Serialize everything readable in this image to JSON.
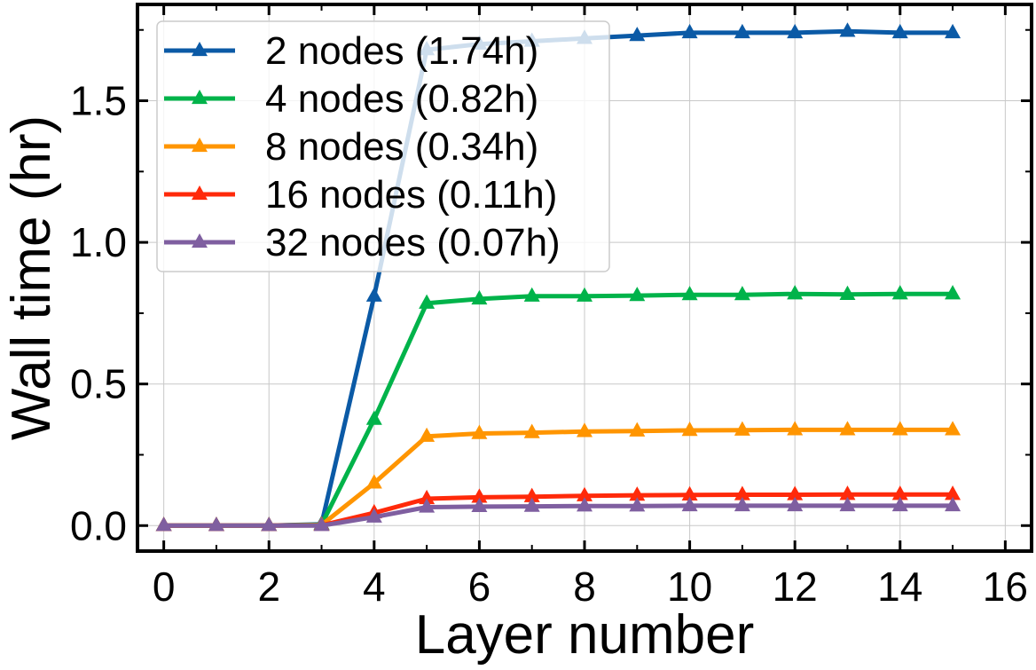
{
  "chart_data": {
    "type": "line",
    "xlabel": "Layer number",
    "ylabel": "Wall time (hr)",
    "xlim": [
      -0.5,
      16.5
    ],
    "ylim": [
      -0.09,
      1.84
    ],
    "xticks": [
      0,
      2,
      4,
      6,
      8,
      10,
      12,
      14,
      16
    ],
    "yticks": [
      0.0,
      0.5,
      1.0,
      1.5
    ],
    "ytick_labels": [
      "0.0",
      "0.5",
      "1.0",
      "1.5"
    ],
    "minor_x_step": 1,
    "minor_y_step": 0.25,
    "grid": true,
    "legend_position": "top-left",
    "marker": "triangle",
    "x": [
      0,
      1,
      2,
      3,
      4,
      5,
      6,
      7,
      8,
      9,
      10,
      11,
      12,
      13,
      14,
      15
    ],
    "series": [
      {
        "name": "2 nodes (1.74h)",
        "color": "#0b5aa6",
        "values": [
          0.0,
          0.0,
          0.0,
          0.005,
          0.81,
          1.68,
          1.7,
          1.71,
          1.72,
          1.73,
          1.74,
          1.74,
          1.74,
          1.745,
          1.74,
          1.74
        ]
      },
      {
        "name": "4 nodes (0.82h)",
        "color": "#00b34a",
        "values": [
          0.0,
          0.0,
          0.0,
          0.003,
          0.375,
          0.785,
          0.8,
          0.81,
          0.81,
          0.812,
          0.815,
          0.815,
          0.818,
          0.816,
          0.818,
          0.818
        ]
      },
      {
        "name": "8 nodes (0.34h)",
        "color": "#ff9500",
        "values": [
          0.0,
          0.0,
          0.0,
          0.002,
          0.15,
          0.315,
          0.325,
          0.328,
          0.332,
          0.334,
          0.336,
          0.337,
          0.338,
          0.338,
          0.338,
          0.338
        ]
      },
      {
        "name": "16 nodes (0.11h)",
        "color": "#ff2a0a",
        "values": [
          0.0,
          0.0,
          0.0,
          0.001,
          0.045,
          0.095,
          0.1,
          0.102,
          0.105,
          0.107,
          0.108,
          0.109,
          0.109,
          0.11,
          0.11,
          0.11
        ]
      },
      {
        "name": "32 nodes (0.07h)",
        "color": "#7f5fa0",
        "values": [
          0.0,
          0.0,
          0.0,
          0.0,
          0.03,
          0.065,
          0.067,
          0.068,
          0.069,
          0.069,
          0.07,
          0.07,
          0.07,
          0.07,
          0.07,
          0.07
        ]
      }
    ]
  }
}
